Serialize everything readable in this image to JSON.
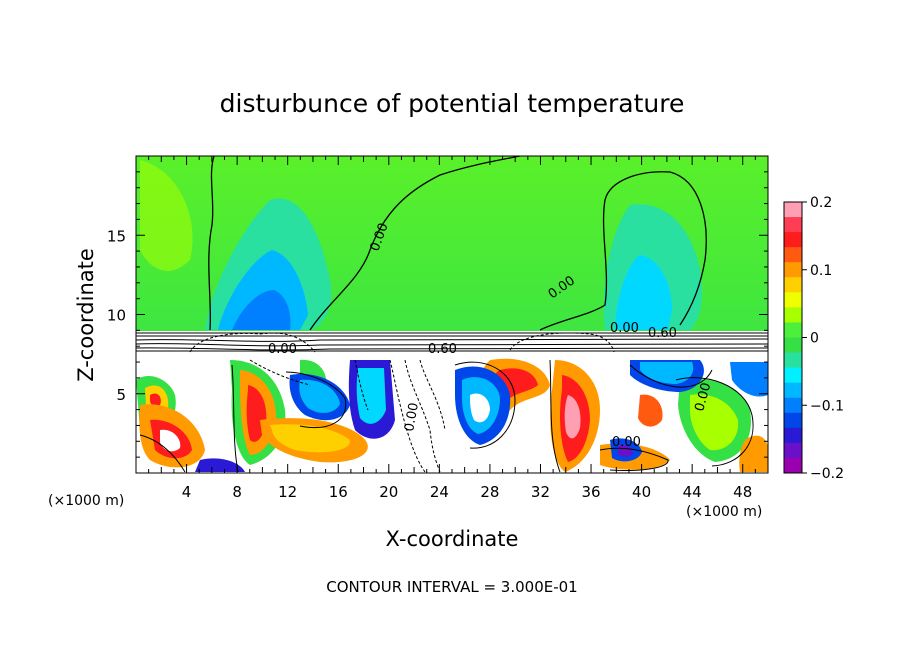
{
  "chart_data": {
    "type": "heatmap",
    "title": "disturbunce of potential temperature",
    "xlabel": "X-coordinate",
    "ylabel": "Z-coordinate",
    "x_unit": "(×1000 m)",
    "x_unit_right": "(×1000 m)",
    "footer": "CONTOUR INTERVAL = 3.000E-01",
    "xlim": [
      0,
      50
    ],
    "ylim": [
      0,
      20
    ],
    "x_ticks": [
      "4",
      "8",
      "12",
      "16",
      "20",
      "24",
      "28",
      "32",
      "36",
      "40",
      "44",
      "48"
    ],
    "x_tick_values": [
      4,
      8,
      12,
      16,
      20,
      24,
      28,
      32,
      36,
      40,
      44,
      48
    ],
    "y_ticks": [
      "5",
      "10",
      "15"
    ],
    "y_tick_values": [
      5,
      10,
      15
    ],
    "colorbar": {
      "min": -0.2,
      "max": 0.2,
      "tick_labels": [
        "0.2",
        "0.1",
        "0",
        "−0.1",
        "−0.2"
      ],
      "tick_values": [
        0.2,
        0.1,
        0,
        -0.1,
        -0.2
      ],
      "colors": [
        "#ff9fb4",
        "#ff3e55",
        "#ff1c1c",
        "#ff5a10",
        "#ff9a00",
        "#ffd000",
        "#f0ff00",
        "#a8ff00",
        "#4cf03a",
        "#34e045",
        "#2ae0a0",
        "#00f0ff",
        "#00b8ff",
        "#0080ff",
        "#0046e8",
        "#2a1ad6",
        "#6a10c8",
        "#9a00b0"
      ]
    },
    "contour_labels": [
      "0.00",
      "0.00",
      "0.00",
      "0.60",
      "0.60",
      "0.00",
      "0.00",
      "0.00",
      "0.00"
    ],
    "contour_interval": 0.3
  }
}
